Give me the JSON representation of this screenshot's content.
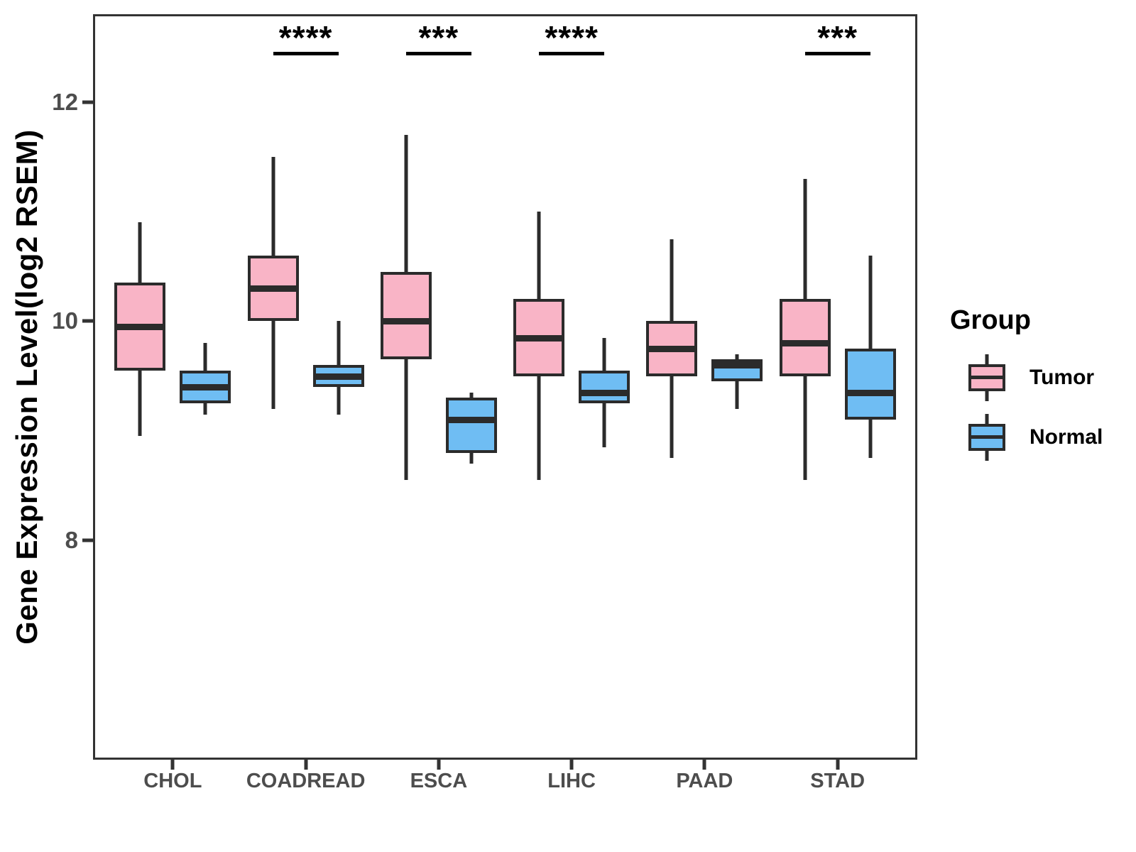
{
  "figure": {
    "background": "#ffffff"
  },
  "colors": {
    "tumor_fill": "#F9B4C6",
    "normal_fill": "#6FBDF3",
    "stroke": "#2b2b2b",
    "panel_border": "#333333",
    "axis_text": "#4d4d4d",
    "title_text": "#000000"
  },
  "y_axis": {
    "title": "Gene Expression Level(log2 RSEM)",
    "ticks": [
      {
        "label": "12",
        "value": 12
      },
      {
        "label": "10",
        "value": 10
      },
      {
        "label": "8",
        "value": 8
      }
    ]
  },
  "legend": {
    "title": "Group",
    "items": [
      {
        "label": "Tumor",
        "color_key": "tumor_fill"
      },
      {
        "label": "Normal",
        "color_key": "normal_fill"
      }
    ]
  },
  "chart_data": {
    "type": "grouped_boxplot",
    "title": "",
    "xlabel": "",
    "ylabel": "Gene Expression Level(log2 RSEM)",
    "ylim": [
      6.0,
      12.8
    ],
    "yticks": [
      8,
      10,
      12
    ],
    "grid": false,
    "legend_position": "right",
    "categories": [
      "CHOL",
      "COADREAD",
      "ESCA",
      "LIHC",
      "PAAD",
      "STAD"
    ],
    "series": [
      {
        "name": "Tumor",
        "color_key": "tumor_fill",
        "boxes": [
          {
            "whisker_low": 8.95,
            "q1": 9.55,
            "median": 9.95,
            "q3": 10.35,
            "whisker_high": 10.9
          },
          {
            "whisker_low": 9.2,
            "q1": 10.0,
            "median": 10.3,
            "q3": 10.6,
            "whisker_high": 11.5
          },
          {
            "whisker_low": 8.55,
            "q1": 9.65,
            "median": 10.0,
            "q3": 10.45,
            "whisker_high": 11.7
          },
          {
            "whisker_low": 8.55,
            "q1": 9.5,
            "median": 9.85,
            "q3": 10.2,
            "whisker_high": 11.0
          },
          {
            "whisker_low": 8.75,
            "q1": 9.5,
            "median": 9.75,
            "q3": 10.0,
            "whisker_high": 10.75
          },
          {
            "whisker_low": 8.55,
            "q1": 9.5,
            "median": 9.8,
            "q3": 10.2,
            "whisker_high": 11.3
          }
        ]
      },
      {
        "name": "Normal",
        "color_key": "normal_fill",
        "boxes": [
          {
            "whisker_low": 9.15,
            "q1": 9.25,
            "median": 9.4,
            "q3": 9.55,
            "whisker_high": 9.8
          },
          {
            "whisker_low": 9.15,
            "q1": 9.4,
            "median": 9.5,
            "q3": 9.6,
            "whisker_high": 10.0
          },
          {
            "whisker_low": 8.7,
            "q1": 8.8,
            "median": 9.1,
            "q3": 9.3,
            "whisker_high": 9.35
          },
          {
            "whisker_low": 8.85,
            "q1": 9.25,
            "median": 9.35,
            "q3": 9.55,
            "whisker_high": 9.85
          },
          {
            "whisker_low": 9.2,
            "q1": 9.45,
            "median": 9.6,
            "q3": 9.65,
            "whisker_high": 9.7
          },
          {
            "whisker_low": 8.75,
            "q1": 9.1,
            "median": 9.35,
            "q3": 9.75,
            "whisker_high": 10.6
          }
        ]
      }
    ],
    "significance": [
      {
        "category": "COADREAD",
        "label": "****"
      },
      {
        "category": "ESCA",
        "label": "***"
      },
      {
        "category": "LIHC",
        "label": "****"
      },
      {
        "category": "STAD",
        "label": "***"
      }
    ]
  }
}
